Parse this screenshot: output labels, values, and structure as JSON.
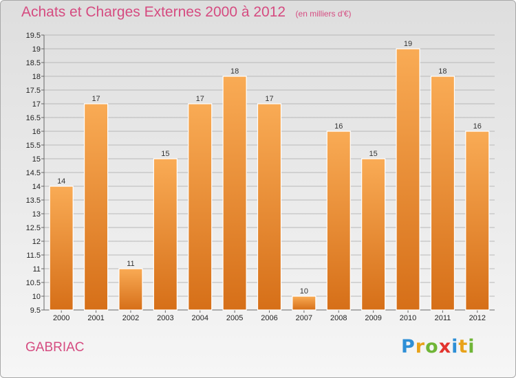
{
  "header": {
    "title": "Achats et Charges Externes 2000 à 2012",
    "unit": "(en milliers d'€)"
  },
  "footer": {
    "commune": "GABRIAC",
    "logo_text": "Proxiti",
    "logo_colors": [
      "#2e8fd6",
      "#e8a21a",
      "#6fb536",
      "#e2332e",
      "#2e8fd6",
      "#e8a21a",
      "#6fb536"
    ]
  },
  "colors": {
    "bar_light": "#f9ab55",
    "bar_dark": "#d66f18",
    "title": "#d54b80"
  },
  "chart_data": {
    "type": "bar",
    "categories": [
      "2000",
      "2001",
      "2002",
      "2003",
      "2004",
      "2005",
      "2006",
      "2007",
      "2008",
      "2009",
      "2010",
      "2011",
      "2012"
    ],
    "values": [
      14,
      17,
      11,
      15,
      17,
      18,
      17,
      10,
      16,
      15,
      19,
      18,
      16
    ],
    "data_labels": [
      "14",
      "17",
      "11",
      "15",
      "17",
      "18",
      "17",
      "10",
      "16",
      "15",
      "19",
      "18",
      "16"
    ],
    "ylim": [
      9.5,
      19.5
    ],
    "ytick_step": 0.5,
    "yticks": [
      "9.5",
      "10",
      "10.5",
      "11",
      "11.5",
      "12",
      "12.5",
      "13",
      "13.5",
      "14",
      "14.5",
      "15",
      "15.5",
      "16",
      "16.5",
      "17",
      "17.5",
      "18",
      "18.5",
      "19",
      "19.5"
    ],
    "grid": true,
    "legend": "none"
  }
}
